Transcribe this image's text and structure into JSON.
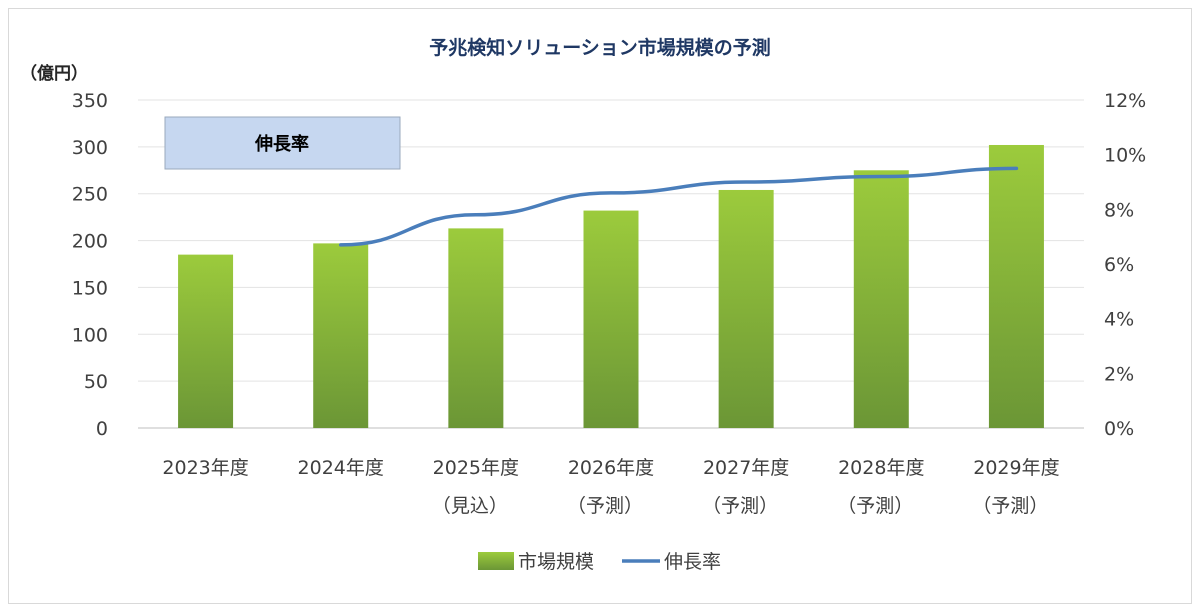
{
  "chart_data": {
    "type": "bar",
    "title": "予兆検知ソリューション市場規模の予測",
    "y_unit": "（億円）",
    "categories": [
      [
        "2023年度",
        ""
      ],
      [
        "2024年度",
        ""
      ],
      [
        "2025年度",
        "（見込）"
      ],
      [
        "2026年度",
        "（予測）"
      ],
      [
        "2027年度",
        "（予測）"
      ],
      [
        "2028年度",
        "（予測）"
      ],
      [
        "2029年度",
        "（予測）"
      ]
    ],
    "series": [
      {
        "name": "市場規模",
        "kind": "bar",
        "axis": "left",
        "color": "#8db83c",
        "values": [
          185,
          197,
          213,
          232,
          254,
          275,
          302
        ]
      },
      {
        "name": "伸長率",
        "kind": "line",
        "axis": "right",
        "color": "#4a7ebb",
        "values": [
          null,
          0.067,
          0.078,
          0.086,
          0.09,
          0.092,
          0.095
        ]
      }
    ],
    "ylim": [
      0,
      350
    ],
    "yticks": [
      "0",
      "50",
      "100",
      "150",
      "200",
      "250",
      "300",
      "350"
    ],
    "ylim_right": [
      0,
      0.12
    ],
    "yticks_right": [
      "0%",
      "2%",
      "4%",
      "6%",
      "8%",
      "10%",
      "12%"
    ],
    "legend": [
      "市場規模",
      "伸長率"
    ],
    "legend_position": "bottom",
    "annotation": "伸長率",
    "grid": true
  }
}
